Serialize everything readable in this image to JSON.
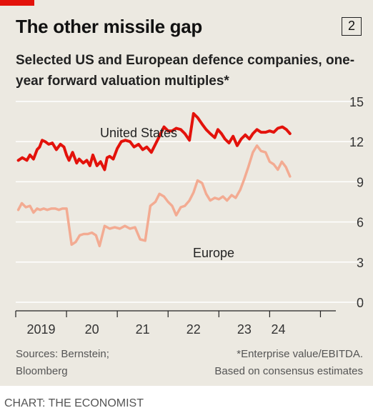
{
  "title": "The other missile gap",
  "chart_number": "2",
  "subtitle": "Selected US and European defence companies, one-year forward valuation multiples*",
  "sources": [
    "Sources: Bernstein;",
    "Bloomberg"
  ],
  "notes": [
    "*Enterprise value/EBITDA.",
    "Based on consensus estimates"
  ],
  "credit": "CHART: THE ECONOMIST",
  "colors": {
    "background": "#ece9e1",
    "brand_red": "#e3120b",
    "us_series": "#e3120b",
    "europe_series": "#f3ab92",
    "grid": "#ffffff"
  },
  "chart_data": {
    "type": "line",
    "ylim": [
      0,
      15
    ],
    "yticks": [
      "15",
      "12",
      "9",
      "6",
      "3",
      "0"
    ],
    "ytick_values": [
      15,
      12,
      9,
      6,
      3,
      0
    ],
    "xlim": [
      2018.5,
      2025.0
    ],
    "xtick_marks": [
      2018.5,
      2019.5,
      2020.5,
      2021.5,
      2022.5,
      2023.5,
      2024.5
    ],
    "xlabels": [
      "2019",
      "20",
      "21",
      "22",
      "23",
      "24"
    ],
    "xlabel_positions": [
      2019.0,
      2020.0,
      2021.0,
      2022.0,
      2023.0,
      2023.67
    ],
    "grid": true,
    "series": [
      {
        "name": "United States",
        "x": [
          2018.55,
          2018.63,
          2018.72,
          2018.78,
          2018.85,
          2018.92,
          2018.97,
          2019.02,
          2019.08,
          2019.15,
          2019.22,
          2019.3,
          2019.38,
          2019.45,
          2019.5,
          2019.55,
          2019.62,
          2019.7,
          2019.75,
          2019.83,
          2019.9,
          2019.96,
          2020.02,
          2020.1,
          2020.17,
          2020.25,
          2020.3,
          2020.35,
          2020.42,
          2020.5,
          2020.58,
          2020.66,
          2020.75,
          2020.83,
          2020.92,
          2021.0,
          2021.08,
          2021.17,
          2021.25,
          2021.33,
          2021.42,
          2021.5,
          2021.58,
          2021.66,
          2021.75,
          2021.83,
          2021.92,
          2022.0,
          2022.08,
          2022.17,
          2022.25,
          2022.33,
          2022.42,
          2022.48,
          2022.55,
          2022.62,
          2022.7,
          2022.78,
          2022.86,
          2022.94,
          2023.02,
          2023.1,
          2023.17,
          2023.25,
          2023.33,
          2023.42,
          2023.5,
          2023.58,
          2023.66,
          2023.75,
          2023.83,
          2023.9
        ],
        "values": [
          10.6,
          10.8,
          10.6,
          11.0,
          10.7,
          11.4,
          11.6,
          12.1,
          12.0,
          11.8,
          11.9,
          11.4,
          11.8,
          11.6,
          11.0,
          10.6,
          11.2,
          10.4,
          10.7,
          10.4,
          10.6,
          10.2,
          11.0,
          10.2,
          10.5,
          9.9,
          10.8,
          10.9,
          10.7,
          11.5,
          12.0,
          12.1,
          12.0,
          11.6,
          11.8,
          11.4,
          11.6,
          11.2,
          11.8,
          12.4,
          13.1,
          12.8,
          12.8,
          13.0,
          12.9,
          12.6,
          12.1,
          14.1,
          13.8,
          13.3,
          12.9,
          12.6,
          12.3,
          12.9,
          12.6,
          12.2,
          11.9,
          12.4,
          11.7,
          12.2,
          12.5,
          12.2,
          12.6,
          12.9,
          12.7,
          12.7,
          12.8,
          12.7,
          13.0,
          13.1,
          12.9,
          12.6
        ],
        "color": "#e3120b"
      },
      {
        "name": "Europe",
        "x": [
          2018.55,
          2018.62,
          2018.7,
          2018.78,
          2018.85,
          2018.92,
          2018.98,
          2019.05,
          2019.12,
          2019.2,
          2019.28,
          2019.35,
          2019.42,
          2019.5,
          2019.6,
          2019.68,
          2019.76,
          2019.84,
          2019.92,
          2020.0,
          2020.08,
          2020.15,
          2020.25,
          2020.35,
          2020.45,
          2020.55,
          2020.65,
          2020.75,
          2020.85,
          2020.95,
          2021.05,
          2021.15,
          2021.25,
          2021.33,
          2021.42,
          2021.5,
          2021.58,
          2021.66,
          2021.75,
          2021.83,
          2021.92,
          2022.0,
          2022.08,
          2022.17,
          2022.25,
          2022.33,
          2022.42,
          2022.5,
          2022.58,
          2022.66,
          2022.75,
          2022.83,
          2022.92,
          2023.0,
          2023.08,
          2023.17,
          2023.25,
          2023.33,
          2023.42,
          2023.5,
          2023.58,
          2023.66,
          2023.74,
          2023.82,
          2023.9
        ],
        "values": [
          6.9,
          7.4,
          7.1,
          7.2,
          6.7,
          7.0,
          6.9,
          7.0,
          6.9,
          7.0,
          7.0,
          6.9,
          7.0,
          7.0,
          4.3,
          4.5,
          5.0,
          5.1,
          5.1,
          5.2,
          5.0,
          4.2,
          5.7,
          5.5,
          5.6,
          5.5,
          5.7,
          5.5,
          5.6,
          4.7,
          4.6,
          7.2,
          7.5,
          8.1,
          7.9,
          7.5,
          7.2,
          6.5,
          7.1,
          7.2,
          7.6,
          8.2,
          9.1,
          8.9,
          8.1,
          7.6,
          7.8,
          7.7,
          7.9,
          7.6,
          8.0,
          7.8,
          8.4,
          9.2,
          10.1,
          11.2,
          11.7,
          11.3,
          11.2,
          10.5,
          10.3,
          9.9,
          10.5,
          10.1,
          9.4
        ],
        "color": "#f3ab92"
      }
    ],
    "series_labels": [
      "United States",
      "Europe"
    ]
  }
}
